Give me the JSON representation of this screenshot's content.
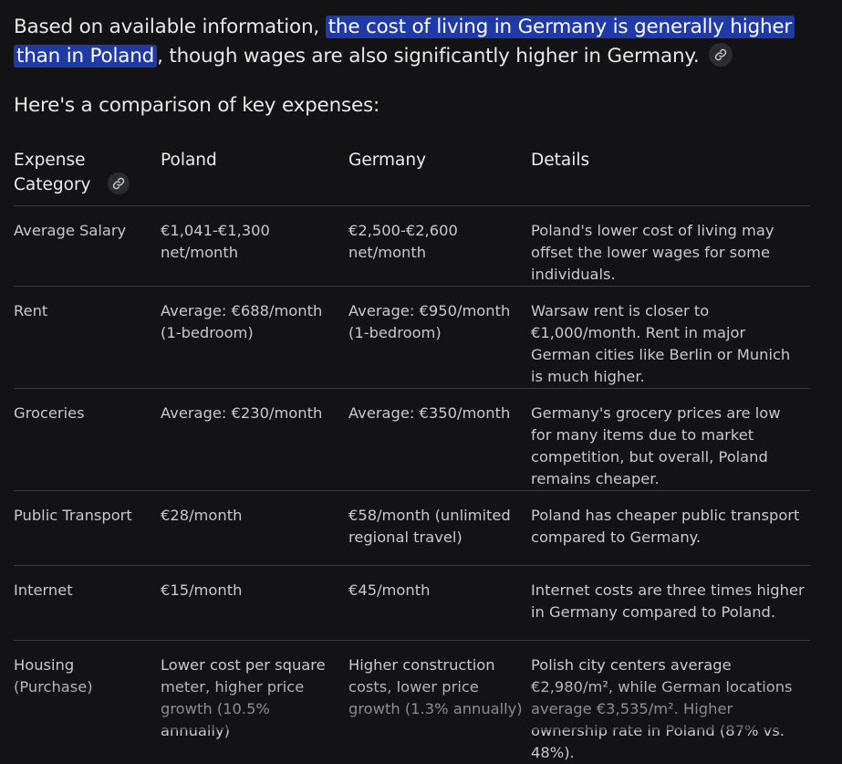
{
  "intro": {
    "before": "Based on available information, ",
    "highlight": "the cost of living in Germany is generally higher than in Poland",
    "after": ", though wages are also significantly higher in Germany.",
    "link_icon": "link-icon"
  },
  "subhead": "Here's a comparison of key expenses:",
  "table": {
    "headers": {
      "category": "Expense Category",
      "poland": "Poland",
      "germany": "Germany",
      "details": "Details"
    },
    "rows": [
      {
        "category": "Average Salary",
        "poland": "€1,041-€1,300 net/month",
        "germany": "€2,500-€2,600 net/month",
        "details": "Poland's lower cost of living may offset the lower wages for some individuals."
      },
      {
        "category": "Rent",
        "poland": "Average: €688/month (1-bedroom)",
        "germany": "Average: €950/month (1-bedroom)",
        "details": "Warsaw rent is closer to €1,000/month. Rent in major German cities like Berlin or Munich is much higher."
      },
      {
        "category": "Groceries",
        "poland": "Average: €230/month",
        "germany": "Average: €350/month",
        "details": "Germany's grocery prices are low for many items due to market competition, but overall, Poland remains cheaper."
      },
      {
        "category": "Public Transport",
        "poland": "€28/month",
        "germany": "€58/month (unlimited regional travel)",
        "details": "Poland has cheaper public transport compared to Germany."
      },
      {
        "category": "Internet",
        "poland": "€15/month",
        "germany": "€45/month",
        "details": "Internet costs are three times higher in Germany compared to Poland."
      },
      {
        "category": "Housing (Purchase)",
        "poland": "Lower cost per square meter, higher price growth (10.5% annually)",
        "germany": "Higher construction costs, lower price growth (1.3% annually)",
        "details": "Polish city centers average €2,980/m², while German locations average €3,535/m². Higher ownership rate in Poland (87% vs. 48%)."
      }
    ]
  },
  "colors": {
    "background": "#131316",
    "highlight": "#1f3aa8",
    "divider": "#3a3b40"
  }
}
